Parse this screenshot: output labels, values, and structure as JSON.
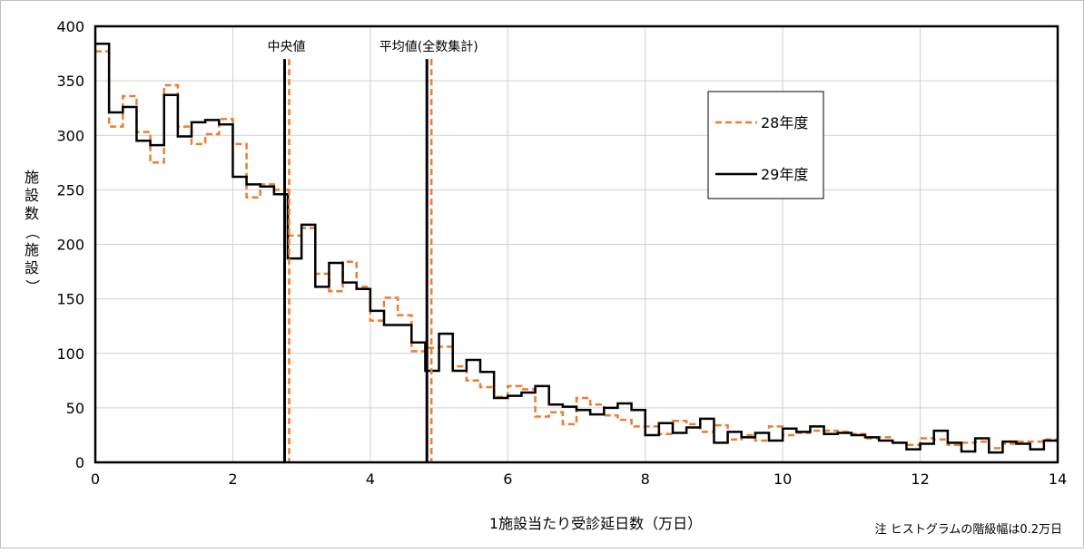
{
  "chart_data": {
    "type": "line",
    "style": "step-histogram",
    "ylabel": "施設数（施設）",
    "xlabel": "1施設当たり受診延日数（万日）",
    "note": "注 ヒストグラムの階級幅は0.2万日",
    "xlim": [
      0,
      14
    ],
    "ylim": [
      0,
      400
    ],
    "x_ticks": [
      "0",
      "2",
      "4",
      "6",
      "8",
      "10",
      "12",
      "14"
    ],
    "y_ticks": [
      "0",
      "50",
      "100",
      "150",
      "200",
      "250",
      "300",
      "350",
      "400"
    ],
    "grid": true,
    "legend_position": "top-right",
    "bin_width": 0.2,
    "series": [
      {
        "name": "28年度",
        "color": "#ED7D31",
        "dash": true,
        "values": [
          377,
          308,
          336,
          303,
          275,
          346,
          308,
          292,
          301,
          315,
          292,
          243,
          255,
          250,
          208,
          215,
          173,
          157,
          184,
          161,
          130,
          151,
          135,
          102,
          105,
          106,
          88,
          75,
          69,
          60,
          70,
          67,
          42,
          46,
          35,
          59,
          53,
          43,
          39,
          33,
          33,
          26,
          38,
          35,
          28,
          34,
          21,
          25,
          20,
          33,
          25,
          27,
          29,
          29,
          28,
          26,
          22,
          23,
          18,
          16,
          22,
          21,
          16,
          18,
          19,
          13,
          17,
          19,
          19,
          21
        ]
      },
      {
        "name": "29年度",
        "color": "#000000",
        "dash": false,
        "values": [
          384,
          321,
          326,
          295,
          291,
          337,
          299,
          312,
          314,
          310,
          262,
          255,
          253,
          246,
          187,
          218,
          161,
          183,
          165,
          159,
          139,
          126,
          126,
          110,
          84,
          118,
          84,
          94,
          83,
          59,
          61,
          64,
          70,
          53,
          51,
          48,
          44,
          50,
          54,
          48,
          25,
          36,
          27,
          32,
          40,
          18,
          28,
          23,
          27,
          20,
          31,
          28,
          33,
          26,
          27,
          25,
          23,
          20,
          18,
          12,
          17,
          29,
          18,
          10,
          22,
          9,
          19,
          17,
          12,
          20
        ]
      }
    ],
    "markers": [
      {
        "label": "中央値",
        "x": 2.78
      },
      {
        "label": "平均値(全数集計)",
        "x": 4.85
      }
    ]
  }
}
